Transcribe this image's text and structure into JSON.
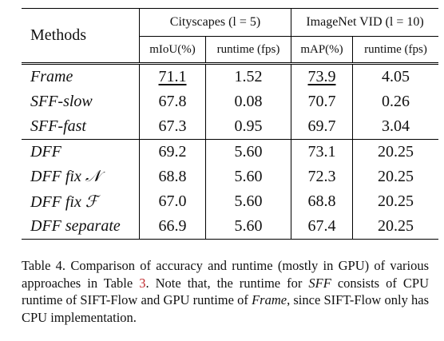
{
  "table": {
    "methods_header": "Methods",
    "groups": [
      {
        "label": "Cityscapes (l = 5)"
      },
      {
        "label": "ImageNet VID (l = 10)"
      }
    ],
    "subheaders": [
      "mIoU(%)",
      "runtime (fps)",
      "mAP(%)",
      "runtime (fps)"
    ],
    "rows": [
      {
        "method": "Frame",
        "cells": [
          "71.1",
          "1.52",
          "73.9",
          "4.05"
        ]
      },
      {
        "method": "SFF-slow",
        "cells": [
          "67.8",
          "0.08",
          "70.7",
          "0.26"
        ]
      },
      {
        "method": "SFF-fast",
        "cells": [
          "67.3",
          "0.95",
          "69.7",
          "3.04"
        ]
      },
      {
        "method": "DFF",
        "cells": [
          "69.2",
          "5.60",
          "73.1",
          "20.25"
        ]
      },
      {
        "method": "DFF fix 𝒩",
        "cells": [
          "68.8",
          "5.60",
          "72.3",
          "20.25"
        ]
      },
      {
        "method": "DFF fix ℱ",
        "cells": [
          "67.0",
          "5.60",
          "68.8",
          "20.25"
        ]
      },
      {
        "method": "DFF separate",
        "cells": [
          "66.9",
          "5.60",
          "67.4",
          "20.25"
        ]
      }
    ],
    "underlined": [
      [
        0,
        0
      ],
      [
        0,
        2
      ]
    ],
    "bold": [
      [
        3,
        0
      ],
      [
        3,
        2
      ]
    ]
  },
  "caption": {
    "label": "Table 4.",
    "t1": " Comparison of accuracy and runtime (mostly in GPU) of various approaches in Table ",
    "ref": "3",
    "t2": ". Note that, the runtime for ",
    "i1": "SFF",
    "t3": " consists of CPU runtime of SIFT-Flow and GPU runtime of ",
    "i2": "Frame",
    "t4": ", since SIFT-Flow only has CPU implementation."
  }
}
